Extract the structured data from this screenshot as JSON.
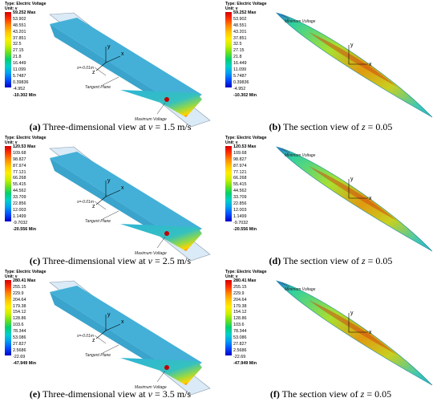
{
  "figure": {
    "panels": [
      {
        "id": "a",
        "kind": "3d",
        "legend": {
          "type": "Type: Electric Voltage",
          "unit": "Unit: v",
          "max": "59.252 Max",
          "ticks": [
            "53.902",
            "48.551",
            "43.201",
            "37.851",
            "32.5",
            "27.15",
            "21.8",
            "16.449",
            "11.099",
            "5.7487",
            "0.39836",
            "-4.952"
          ],
          "min": "-10.302 Min"
        },
        "labels": {
          "s": "s=-0.01m",
          "tangent": "Tangent Plane",
          "maxv": "Maximum Voltage"
        },
        "caption": {
          "letter": "(a)",
          "text": " Three-dimensional view at ",
          "var": "v",
          "eq": " = 1.5 m/s"
        }
      },
      {
        "id": "b",
        "kind": "section",
        "legend": {
          "type": "Type: Electric Voltage",
          "unit": "Unit: v",
          "max": "59.252 Max",
          "ticks": [
            "53.902",
            "48.551",
            "43.201",
            "37.851",
            "32.5",
            "27.15",
            "21.8",
            "16.449",
            "11.099",
            "5.7487",
            "0.39836",
            "-4.952"
          ],
          "min": "-10.302 Min"
        },
        "labels": {
          "minv": "Minimum Voltage"
        },
        "caption": {
          "letter": "(b)",
          "text": " The section view of ",
          "var": "z",
          "eq": " = 0.05"
        }
      },
      {
        "id": "c",
        "kind": "3d",
        "legend": {
          "type": "Type: Electric Voltage",
          "unit": "Unit: v",
          "max": "120.53 Max",
          "ticks": [
            "109.68",
            "98.827",
            "87.974",
            "77.121",
            "66.268",
            "55.415",
            "44.562",
            "33.709",
            "22.856",
            "12.003",
            "1.1499",
            "-9.7032"
          ],
          "min": "-20.556 Min"
        },
        "labels": {
          "s": "s=-0.01m",
          "tangent": "Tangent Plane",
          "maxv": "Maximum Voltage"
        },
        "caption": {
          "letter": "(c)",
          "text": " Three-dimensional view at ",
          "var": "v",
          "eq": " = 2.5 m/s"
        }
      },
      {
        "id": "d",
        "kind": "section",
        "legend": {
          "type": "Type: Electric Voltage",
          "unit": "Unit: v",
          "max": "120.53 Max",
          "ticks": [
            "109.68",
            "98.827",
            "87.974",
            "77.121",
            "66.268",
            "55.415",
            "44.562",
            "33.709",
            "22.856",
            "12.003",
            "1.1499",
            "-9.7032"
          ],
          "min": "-20.556 Min"
        },
        "labels": {
          "minv": "Minimum Voltage"
        },
        "caption": {
          "letter": "(d)",
          "text": " The section view of ",
          "var": "z",
          "eq": " = 0.05"
        }
      },
      {
        "id": "e",
        "kind": "3d",
        "legend": {
          "type": "Type: Electric Voltage",
          "unit": "Unit: v",
          "max": "280.41 Max",
          "ticks": [
            "255.15",
            "229.9",
            "204.64",
            "179.38",
            "154.12",
            "128.86",
            "103.6",
            "78.344",
            "53.086",
            "27.827",
            "2.5686",
            "-22.69"
          ],
          "min": "-47.949 Min"
        },
        "labels": {
          "s": "s=-0.01m",
          "tangent": "Tangent Plane",
          "maxv": "Maximum Voltage"
        },
        "caption": {
          "letter": "(e)",
          "text": " Three-dimensional view at ",
          "var": "v",
          "eq": " = 3.5 m/s"
        }
      },
      {
        "id": "f",
        "kind": "section",
        "legend": {
          "type": "Type: Electric Voltage",
          "unit": "Unit: v",
          "max": "280.41 Max",
          "ticks": [
            "255.15",
            "229.9",
            "204.64",
            "179.38",
            "154.12",
            "128.86",
            "103.6",
            "78.344",
            "53.086",
            "27.827",
            "2.5686",
            "-22.69"
          ],
          "min": "-47.949 Min"
        },
        "labels": {
          "minv": "Minimum Voltage"
        },
        "caption": {
          "letter": "(f)",
          "text": " The section view of ",
          "var": "z",
          "eq": " = 0.05"
        }
      }
    ],
    "axis_labels": {
      "x": "x",
      "y": "y",
      "z": "z"
    }
  }
}
